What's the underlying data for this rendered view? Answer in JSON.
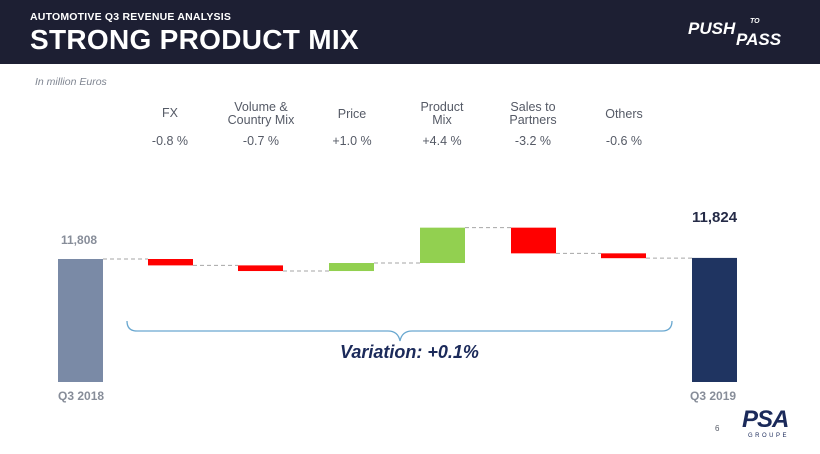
{
  "header": {
    "kicker": "AUTOMOTIVE Q3 REVENUE ANALYSIS",
    "title": "STRONG PRODUCT MIX",
    "brand_push": "PUSH",
    "brand_to": "TO",
    "brand_pass": "PASS"
  },
  "units_note": "In million Euros",
  "categories_display": [
    {
      "label_line1": "FX",
      "label_line2": "",
      "pct": "-0.8 %"
    },
    {
      "label_line1": "Volume &",
      "label_line2": "Country Mix",
      "pct": "-0.7 %"
    },
    {
      "label_line1": "Price",
      "label_line2": "",
      "pct": "+1.0 %"
    },
    {
      "label_line1": "Product",
      "label_line2": "Mix",
      "pct": "+4.4 %"
    },
    {
      "label_line1": "Sales to",
      "label_line2": "Partners",
      "pct": "-3.2 %"
    },
    {
      "label_line1": "Others",
      "label_line2": "",
      "pct": "-0.6 %"
    }
  ],
  "start": {
    "label": "Q3 2018",
    "value_text": "11,808"
  },
  "end": {
    "label": "Q3 2019",
    "value_text": "11,824"
  },
  "variation_text": "Variation: +0.1%",
  "page_number": "6",
  "logo": {
    "word": "PSA",
    "sub": "GROUPE"
  },
  "colors": {
    "header_bg": "#1d1f33",
    "start_bar": "#7a8aa6",
    "end_bar": "#1f3461",
    "negative": "#ff0000",
    "positive": "#92d050",
    "brace": "#6aa8d0",
    "connector": "#a6a6a6",
    "brand_accent": "#c20e5f"
  },
  "chart_data": {
    "type": "waterfall",
    "unit": "million Euros",
    "start": {
      "category": "Q3 2018",
      "value": 11808
    },
    "steps": [
      {
        "category": "FX",
        "change_pct": -0.8,
        "delta": -94
      },
      {
        "category": "Volume & Country Mix",
        "change_pct": -0.7,
        "delta": -83
      },
      {
        "category": "Price",
        "change_pct": 1.0,
        "delta": 118
      },
      {
        "category": "Product Mix",
        "change_pct": 4.4,
        "delta": 520
      },
      {
        "category": "Sales to Partners",
        "change_pct": -3.2,
        "delta": -378
      },
      {
        "category": "Others",
        "change_pct": -0.6,
        "delta": -71
      }
    ],
    "end": {
      "category": "Q3 2019",
      "value": 11824
    }
  }
}
